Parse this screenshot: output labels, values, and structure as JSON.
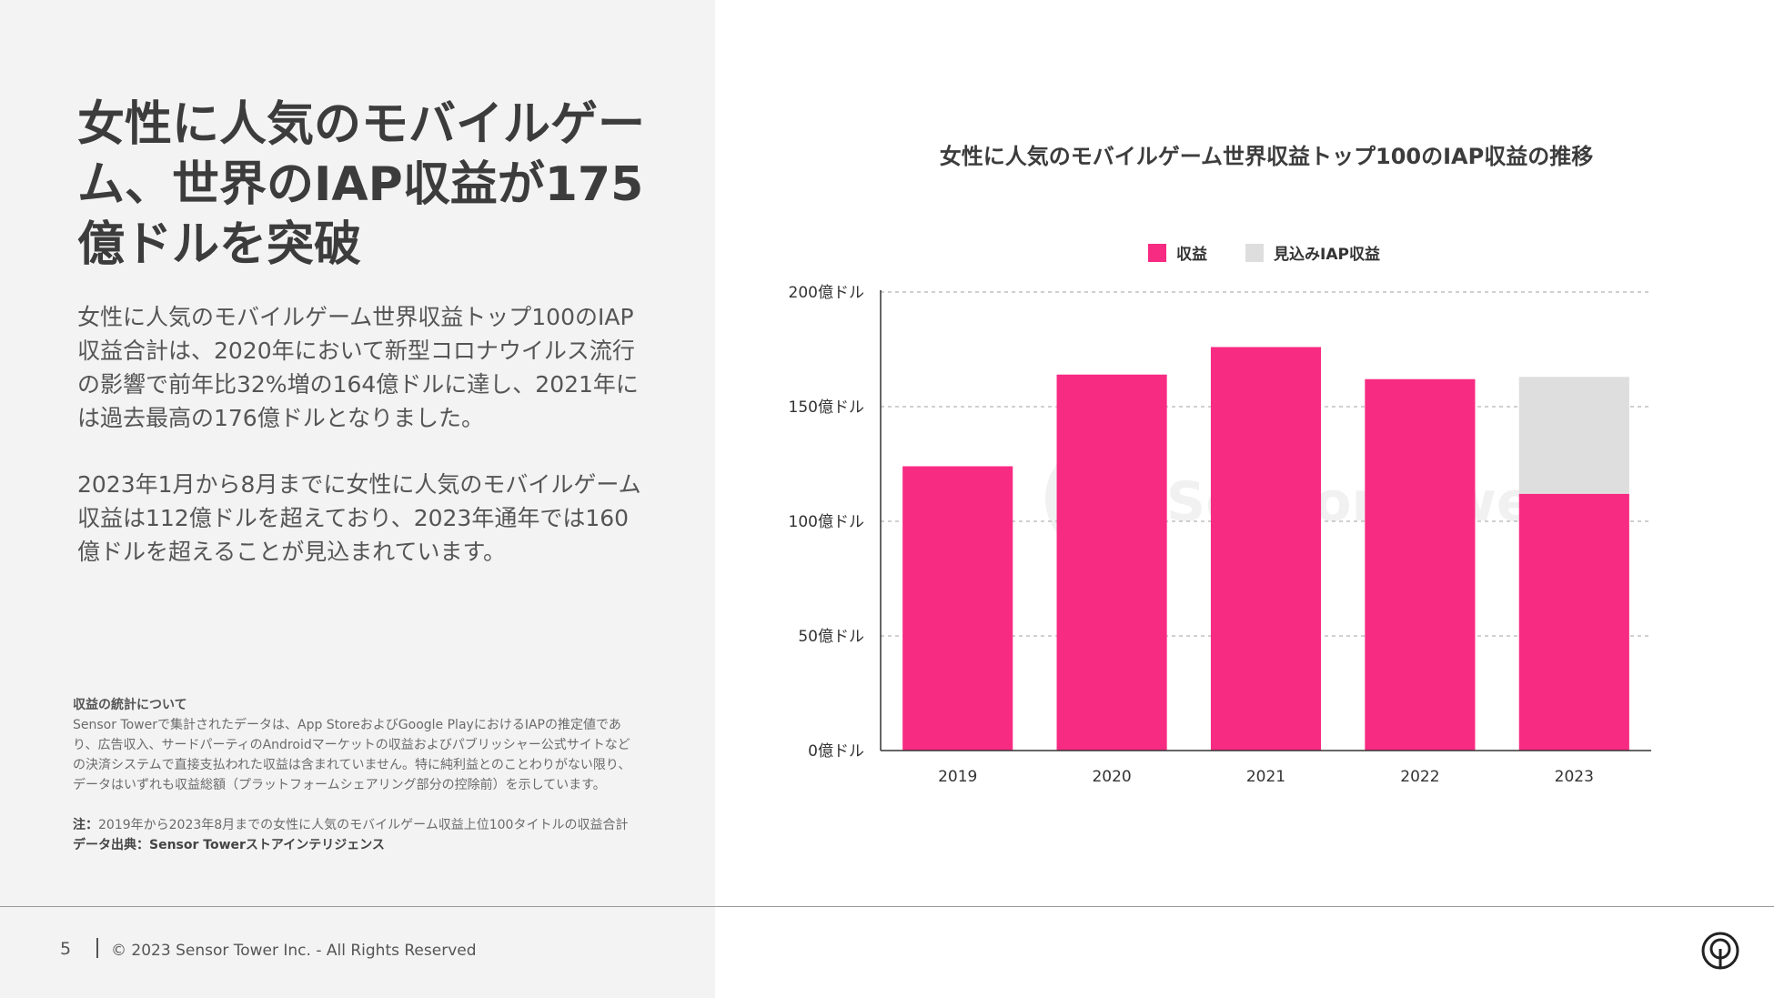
{
  "headline": "女性に人気のモバイルゲーム、世界のIAP収益が175億ドルを突破",
  "paragraphs": {
    "p1": "女性に人気のモバイルゲーム世界収益トップ100のIAP収益合計は、2020年において新型コロナウイルス流行の影響で前年比32%増の164億ドルに達し、2021年には過去最高の176億ドルとなりました。",
    "p2": "2023年1月から8月までに女性に人気のモバイルゲーム収益は112億ドルを超えており、2023年通年では160億ドルを超えることが見込まれています。"
  },
  "notes": {
    "title": "収益の統計について",
    "body": "Sensor Towerで集計されたデータは、App StoreおよびGoogle PlayにおけるIAPの推定値であり、広告収入、サードパーティのAndroidマーケットの収益およびパブリッシャー公式サイトなどの決済システムで直接支払われた収益は含まれていません。特に純利益とのことわりがない限り、データはいずれも収益総額（プラットフォームシェアリング部分の控除前）を示しています。",
    "note_label": "注：",
    "note_text": "2019年から2023年8月までの女性に人気のモバイルゲーム収益上位100タイトルの収益合計",
    "source": "データ出典：Sensor Towerストアインテリジェンス"
  },
  "footer": {
    "page": "5",
    "copyright": "© 2023 Sensor Tower Inc. - All Rights Reserved"
  },
  "colors": {
    "revenue": "#f72b82",
    "projected": "#dedede"
  },
  "chart_data": {
    "type": "bar",
    "title": "女性に人気のモバイルゲーム世界収益トップ100のIAP収益の推移",
    "categories": [
      "2019",
      "2020",
      "2021",
      "2022",
      "2023"
    ],
    "series": [
      {
        "name": "収益",
        "values": [
          124,
          164,
          176,
          162,
          112
        ]
      },
      {
        "name": "見込みIAP収益",
        "values": [
          0,
          0,
          0,
          0,
          51
        ]
      }
    ],
    "stacked": true,
    "yticks": [
      0,
      50,
      100,
      150,
      200
    ],
    "ytick_labels": [
      "0億ドル",
      "50億ドル",
      "100億ドル",
      "150億ドル",
      "200億ドル"
    ],
    "ylim": [
      0,
      200
    ],
    "xlabel": "",
    "ylabel": "",
    "grid": "horizontal dashed",
    "legend": "top-center",
    "watermark": "SensorTower"
  }
}
